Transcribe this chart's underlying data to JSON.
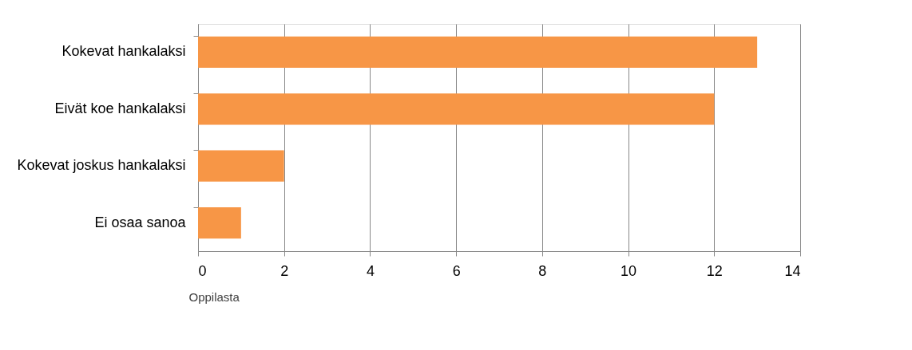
{
  "chart_data": {
    "type": "bar",
    "orientation": "horizontal",
    "categories": [
      "Kokevat hankalaksi",
      "Eivät koe hankalaksi",
      "Kokevat joskus hankalaksi",
      "Ei osaa sanoa"
    ],
    "values": [
      13,
      12,
      2,
      1
    ],
    "color": "#f79646",
    "xlim": [
      0,
      14
    ],
    "xticks": [
      0,
      2,
      4,
      6,
      8,
      10,
      12,
      14
    ],
    "xlabel": "Oppilasta",
    "grid": "x"
  }
}
